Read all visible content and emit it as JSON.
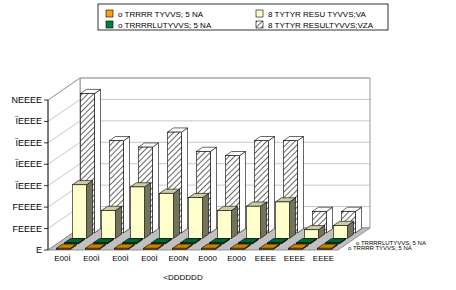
{
  "chart_data": {
    "type": "bar",
    "x_label": "<DDDDDD",
    "categories": [
      "E00Ì",
      "E00Ì",
      "E00Ì",
      "E00Ì",
      "E00N",
      "E000",
      "E000",
      "EEEE",
      "EEEE",
      "EEEE"
    ],
    "series": [
      {
        "name": "o TRRRR TYVVS; 5 NA",
        "color": "#ffa000",
        "values": [
          500,
          500,
          500,
          500,
          500,
          500,
          500,
          500,
          500,
          500
        ]
      },
      {
        "name": "o TRRRRLUTYVVS; 5 NA",
        "color": "#008040",
        "values": [
          500,
          500,
          500,
          500,
          500,
          500,
          500,
          500,
          500,
          500
        ]
      },
      {
        "name": "8 TYTYR RESU TYVVS;VA",
        "color": "#ffffcc",
        "values": [
          25000,
          13000,
          24000,
          21000,
          19000,
          13000,
          15000,
          17000,
          4000,
          6000
        ]
      },
      {
        "name": "8 TYTYR RESULTYVVS;VZA",
        "color": "#ffffff",
        "values": [
          65000,
          43000,
          40000,
          47000,
          38000,
          36000,
          43000,
          43000,
          10000,
          10000
        ]
      }
    ],
    "ylim": [
      0,
      70000
    ],
    "yticks": [
      {
        "value": 0,
        "label": "E"
      },
      {
        "value": 10000,
        "label": "FEEEE"
      },
      {
        "value": 20000,
        "label": "FEEEE"
      },
      {
        "value": 30000,
        "label": "ÏEEEE"
      },
      {
        "value": 40000,
        "label": "ÏEEEE"
      },
      {
        "value": 50000,
        "label": "ÏEEEE"
      },
      {
        "value": 60000,
        "label": "ÏEEEE"
      },
      {
        "value": 70000,
        "label": "NEEEE"
      }
    ],
    "grid": true,
    "legend": "top"
  }
}
